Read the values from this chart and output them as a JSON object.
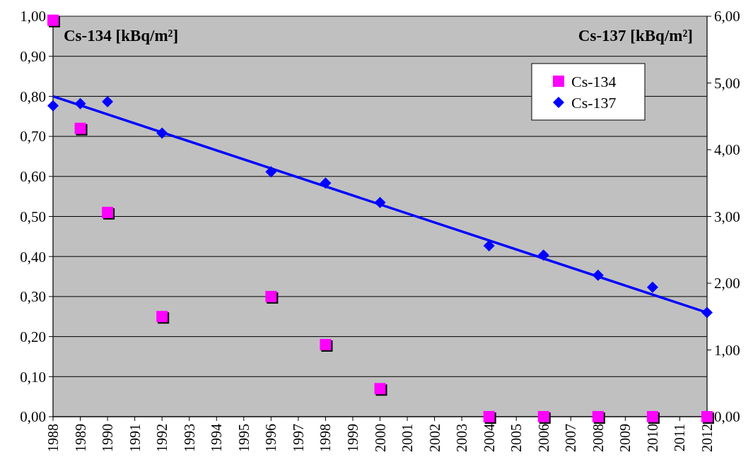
{
  "chart_data": {
    "type": "scatter",
    "ylabel": "Cs-134 [kBq/m²]",
    "y2label": "Cs-137 [kBq/m²]",
    "x": [
      1988,
      1989,
      1990,
      1992,
      1996,
      1998,
      2000,
      2004,
      2006,
      2008,
      2010,
      2012
    ],
    "series": [
      {
        "name": "Cs-134",
        "color": "#ff00ff",
        "marker": "square",
        "values": [
          0.99,
          0.72,
          0.51,
          0.25,
          0.3,
          0.18,
          0.07,
          0,
          0,
          0,
          0,
          0
        ]
      },
      {
        "name": "Cs-137",
        "color": "#0000ff",
        "marker": "diamond",
        "axis": "y2",
        "values": [
          4.66,
          4.69,
          4.72,
          4.25,
          3.67,
          3.5,
          3.21,
          2.56,
          2.42,
          2.12,
          1.94,
          1.56
        ]
      },
      {
        "type": "line",
        "color": "#0000ff",
        "marker": "none",
        "axis": "y2",
        "x": [
          1988,
          2012
        ],
        "values": [
          4.8,
          1.56
        ]
      }
    ],
    "xlim": [
      1988,
      2012
    ],
    "xticks": [
      1988,
      1989,
      1990,
      1991,
      1992,
      1993,
      1994,
      1995,
      1996,
      1997,
      1998,
      1999,
      2000,
      2001,
      2002,
      2003,
      2004,
      2005,
      2006,
      2007,
      2008,
      2009,
      2010,
      2011,
      2012
    ],
    "ylim": [
      0,
      1
    ],
    "yticks": [
      {
        "value": 0,
        "label": "0,00"
      },
      {
        "value": 0.1,
        "label": "0,10"
      },
      {
        "value": 0.2,
        "label": "0,20"
      },
      {
        "value": 0.3,
        "label": "0,30"
      },
      {
        "value": 0.4,
        "label": "0,40"
      },
      {
        "value": 0.5,
        "label": "0,50"
      },
      {
        "value": 0.6,
        "label": "0,60"
      },
      {
        "value": 0.7,
        "label": "0,70"
      },
      {
        "value": 0.8,
        "label": "0,80"
      },
      {
        "value": 0.9,
        "label": "0,90"
      },
      {
        "value": 1,
        "label": "1,00"
      }
    ],
    "y2lim": [
      0,
      6
    ],
    "y2ticks": [
      {
        "value": 0,
        "label": "0,00"
      },
      {
        "value": 1,
        "label": "1,00"
      },
      {
        "value": 2,
        "label": "2,00"
      },
      {
        "value": 3,
        "label": "3,00"
      },
      {
        "value": 4,
        "label": "4,00"
      },
      {
        "value": 5,
        "label": "5,00"
      },
      {
        "value": 6,
        "label": "6,00"
      }
    ],
    "grid": "y",
    "legend": "top right"
  }
}
